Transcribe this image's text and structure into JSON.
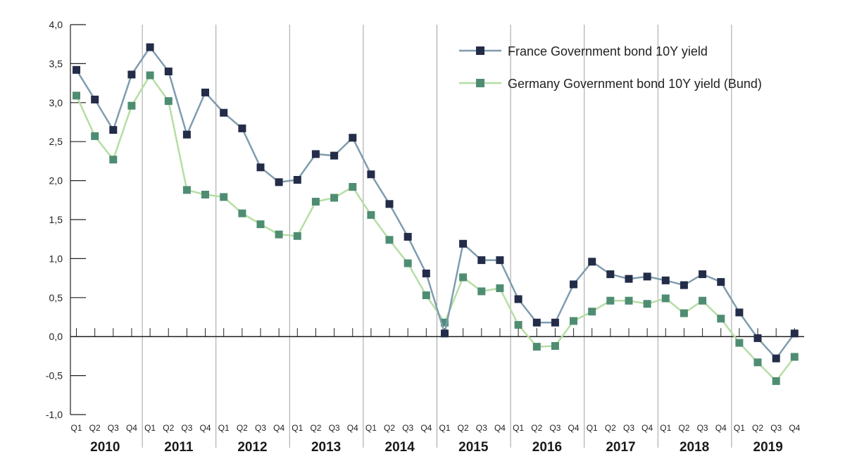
{
  "chart_data": {
    "type": "line",
    "title": "",
    "xlabel": "",
    "ylabel": "",
    "ylim": [
      -1.0,
      4.0
    ],
    "yticks": [
      4.0,
      3.5,
      3.0,
      2.5,
      2.0,
      1.5,
      1.0,
      0.5,
      0.0,
      -0.5,
      -1.0
    ],
    "ytick_labels": [
      "4,0",
      "3,5",
      "3,0",
      "2,5",
      "2,0",
      "1,5",
      "1,0",
      "0,5",
      "0,0",
      "-0,5",
      "-1,0"
    ],
    "quarter_labels": [
      "Q1",
      "Q2",
      "Q3",
      "Q4"
    ],
    "years": [
      "2010",
      "2011",
      "2012",
      "2013",
      "2014",
      "2015",
      "2016",
      "2017",
      "2018",
      "2019"
    ],
    "grid": "vertical year separators",
    "legend_position": "top-right",
    "series": [
      {
        "name": "France Government bond 10Y yield",
        "color": "#7f9cae",
        "marker_color": "#232c48",
        "values": [
          3.42,
          3.04,
          2.65,
          3.36,
          3.71,
          3.4,
          2.59,
          3.13,
          2.87,
          2.67,
          2.17,
          1.98,
          2.01,
          2.34,
          2.32,
          2.55,
          2.08,
          1.7,
          1.28,
          0.81,
          0.04,
          1.19,
          0.98,
          0.98,
          0.48,
          0.18,
          0.18,
          0.67,
          0.96,
          0.8,
          0.74,
          0.77,
          0.72,
          0.66,
          0.8,
          0.7,
          0.31,
          -0.02,
          -0.28,
          0.04
        ]
      },
      {
        "name": "Germany Government bond 10Y yield (Bund)",
        "color": "#b5dea3",
        "marker_color": "#4f8d72",
        "values": [
          3.09,
          2.57,
          2.27,
          2.96,
          3.35,
          3.02,
          1.88,
          1.82,
          1.79,
          1.58,
          1.44,
          1.31,
          1.29,
          1.73,
          1.78,
          1.92,
          1.56,
          1.24,
          0.94,
          0.53,
          0.18,
          0.76,
          0.58,
          0.62,
          0.15,
          -0.13,
          -0.12,
          0.2,
          0.32,
          0.46,
          0.46,
          0.42,
          0.49,
          0.3,
          0.46,
          0.23,
          -0.08,
          -0.33,
          -0.57,
          -0.26
        ]
      }
    ]
  }
}
